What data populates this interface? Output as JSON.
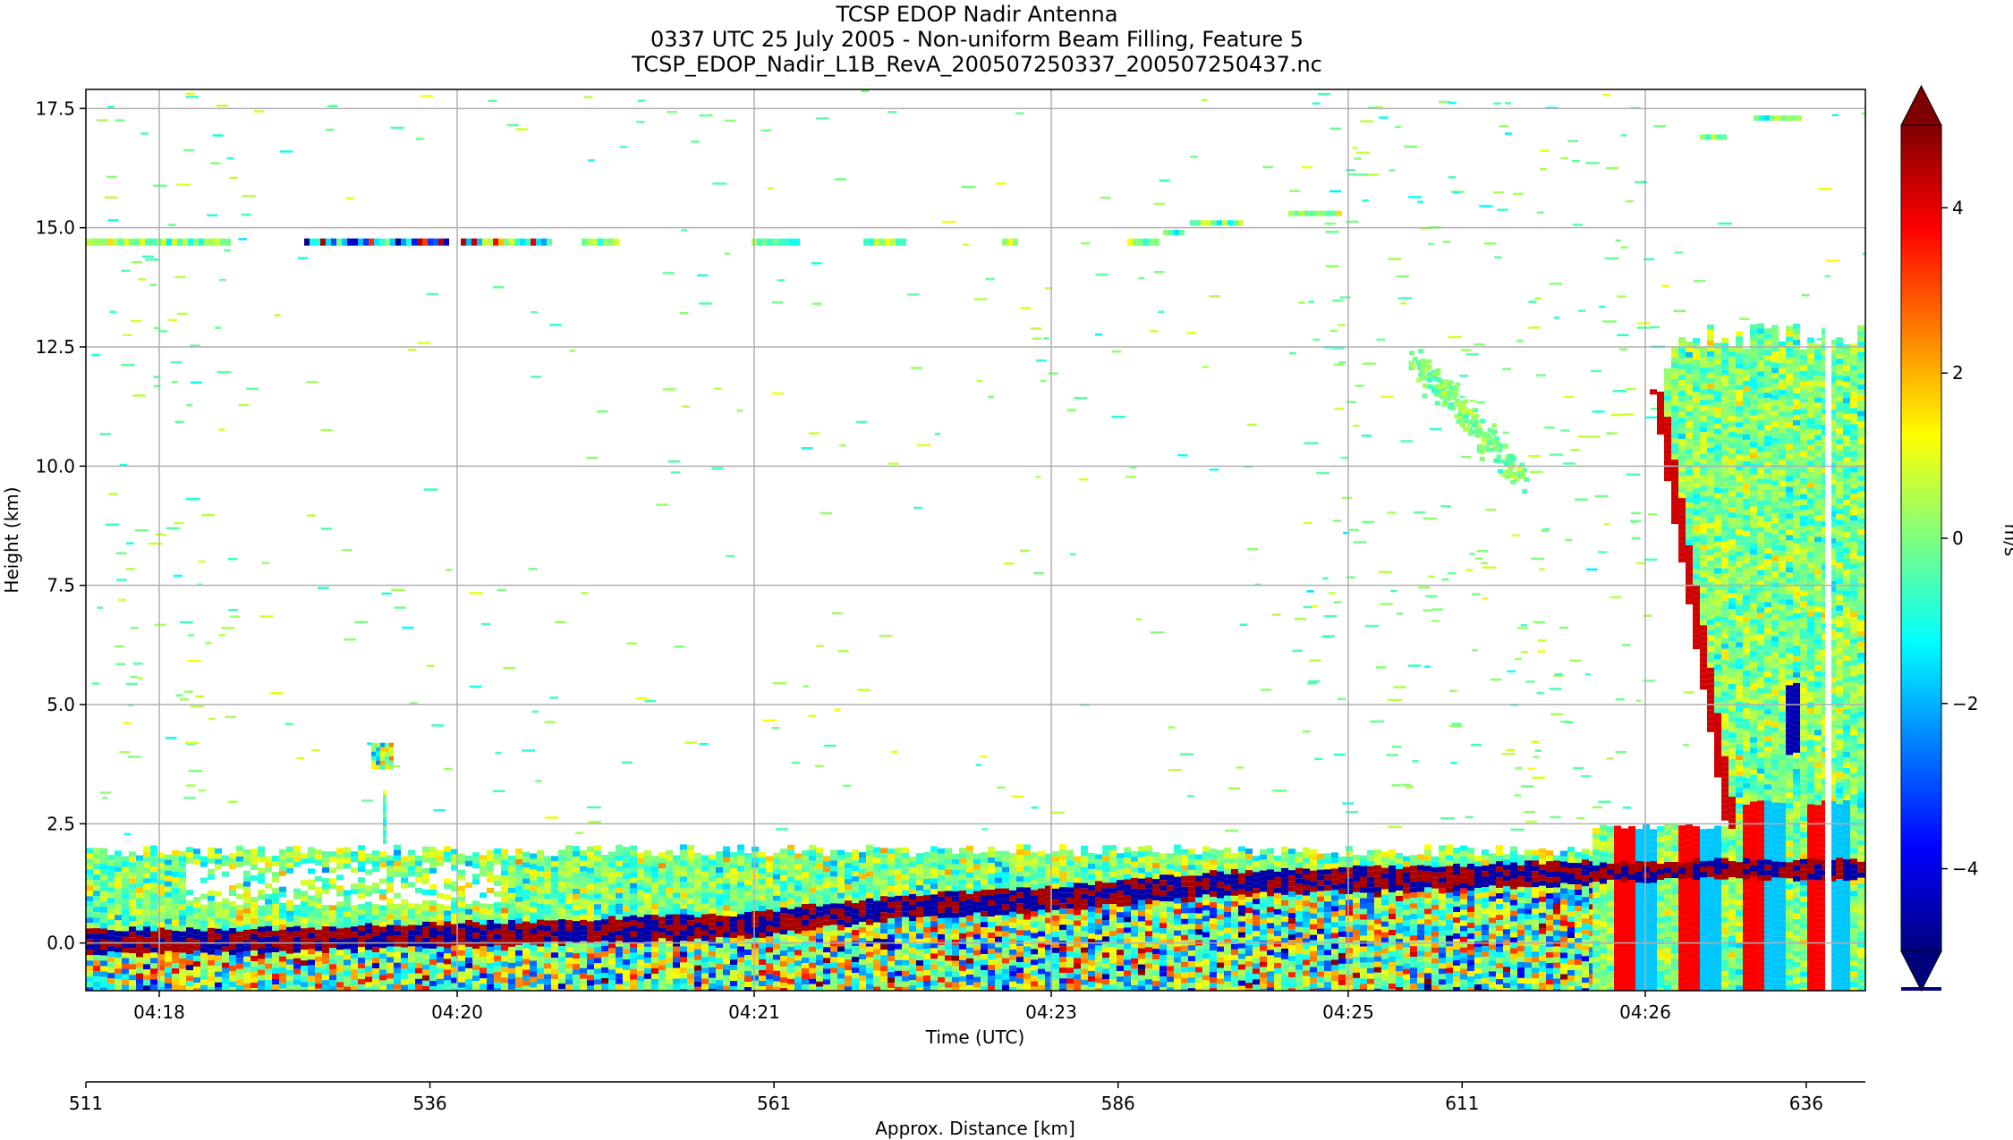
{
  "chart_data": {
    "type": "heatmap",
    "title_lines": [
      "TCSP EDOP Nadir Antenna",
      "0337 UTC 25 July 2005 - Non-uniform Beam Filling, Feature 5",
      "TCSP_EDOP_Nadir_L1B_RevA_200507250337_200507250437.nc"
    ],
    "ylabel": "Height (km)",
    "xlabel": "Time (UTC)",
    "x2label": "Approx. Distance [km]",
    "colorbar_label": "m/s",
    "y_ticks": [
      0.0,
      2.5,
      5.0,
      7.5,
      10.0,
      12.5,
      15.0,
      17.5
    ],
    "y_tick_labels": [
      "0.0",
      "2.5",
      "5.0",
      "7.5",
      "10.0",
      "12.5",
      "15.0",
      "17.5"
    ],
    "ylim": [
      -1.0,
      17.9
    ],
    "x_tick_labels": [
      "04:18",
      "04:20",
      "04:21",
      "04:23",
      "04:25",
      "04:26"
    ],
    "x2_tick_labels": [
      "511",
      "536",
      "561",
      "586",
      "611",
      "636"
    ],
    "x2_ticks": [
      511,
      536,
      561,
      586,
      611,
      636
    ],
    "x2lim": [
      511,
      640.3
    ],
    "colorbar_ticks": [
      4,
      2,
      0,
      -2,
      -4
    ],
    "colorbar_tick_labels": [
      "4",
      "2",
      "0",
      "−2",
      "−4"
    ],
    "clim": [
      -5,
      5
    ],
    "colormap": "jet",
    "grid": true,
    "features": {
      "surface_height_km": [
        0.1,
        0.1,
        0.2,
        0.3,
        0.4,
        0.8,
        1.0,
        1.3,
        1.4,
        1.5,
        1.6,
        1.6
      ],
      "low_cloud_top_km": 2.0,
      "thin_layer_km": 14.7,
      "deep_convection_top_km": 13.0
    }
  },
  "colors": {
    "jet_stops": [
      "#00007f",
      "#0000ff",
      "#007fff",
      "#00ffff",
      "#7fff7f",
      "#ffff00",
      "#ff7f00",
      "#ff0000",
      "#7f0000"
    ],
    "grid": "#b0b0b0",
    "background": "#ffffff"
  }
}
